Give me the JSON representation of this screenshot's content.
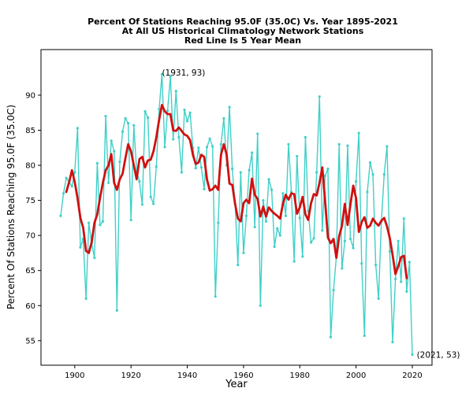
{
  "chart_data": {
    "type": "line",
    "title_lines": [
      "Percent Of Stations Reaching 95.0F (35.0C) Vs. Year 1895-2021",
      "At All US Historical Climatology Network Stations",
      "Red Line Is 5 Year Mean"
    ],
    "xlabel": "Year",
    "ylabel": "Percent Of Stations Reaching 95.0F (35.0C)",
    "xlim": [
      1888,
      2027
    ],
    "ylim": [
      51.5,
      96.5
    ],
    "xticks": [
      1900,
      1920,
      1940,
      1960,
      1980,
      2000,
      2020
    ],
    "yticks": [
      55,
      60,
      65,
      70,
      75,
      80,
      85,
      90
    ],
    "grid": false,
    "colors": {
      "series": "#40d0c8",
      "mean": "#d01010"
    },
    "series": [
      {
        "name": "Percent of stations",
        "x_start": 1895,
        "values": [
          72.8,
          76.0,
          78.2,
          77.6,
          77.0,
          79.0,
          85.3,
          68.3,
          69.5,
          61.0,
          71.8,
          68.9,
          66.8,
          80.3,
          71.5,
          72.0,
          87.0,
          77.5,
          83.5,
          82.0,
          59.3,
          80.5,
          84.8,
          86.7,
          86.0,
          72.2,
          85.7,
          79.3,
          77.7,
          74.4,
          87.7,
          86.8,
          75.5,
          74.5,
          79.8,
          88.0,
          93.0,
          82.6,
          87.8,
          92.7,
          83.7,
          90.6,
          84.0,
          79.0,
          87.9,
          86.3,
          87.5,
          82.5,
          79.6,
          82.5,
          79.7,
          76.6,
          82.6,
          83.8,
          82.7,
          61.3,
          71.8,
          83.0,
          86.7,
          80.0,
          88.3,
          79.5,
          74.5,
          65.8,
          79.0,
          67.5,
          72.8,
          79.3,
          81.8,
          71.2,
          84.5,
          60.0,
          75.0,
          72.0,
          78.0,
          76.5,
          68.4,
          71.0,
          70.0,
          76.0,
          72.8,
          83.0,
          76.2,
          66.3,
          81.3,
          72.5,
          67.0,
          84.0,
          73.5,
          69.0,
          69.6,
          79.0,
          89.8,
          70.7,
          78.5,
          79.5,
          55.5,
          62.2,
          67.0,
          83.0,
          65.3,
          69.2,
          82.8,
          69.5,
          68.2,
          77.7,
          84.6,
          66.0,
          55.7,
          76.2,
          80.4,
          78.7,
          65.8,
          61.0,
          72.0,
          78.7,
          82.7,
          67.7,
          54.8,
          63.8,
          69.2,
          63.4,
          72.4,
          62.0,
          66.2,
          53.0
        ],
        "point_labels": [
          {
            "year": 1931,
            "value": 93,
            "text": "(1931, 93)"
          },
          {
            "year": 2021,
            "value": 53,
            "text": "(2021, 53)"
          }
        ]
      },
      {
        "name": "5 Year Mean",
        "x_start": 1897,
        "values": [
          76.2,
          77.6,
          79.3,
          77.6,
          75.3,
          72.5,
          71.1,
          67.8,
          67.5,
          69.0,
          71.8,
          73.0,
          75.4,
          77.5,
          79.3,
          80.0,
          81.6,
          77.5,
          76.5,
          78.0,
          78.8,
          81.0,
          83.0,
          82.0,
          80.0,
          78.0,
          80.9,
          81.2,
          79.7,
          80.7,
          80.8,
          82.0,
          84.0,
          86.5,
          88.6,
          87.7,
          87.3,
          87.3,
          85.0,
          84.9,
          85.4,
          84.9,
          84.4,
          84.2,
          83.6,
          81.5,
          80.2,
          80.4,
          81.5,
          81.2,
          78.0,
          76.4,
          76.6,
          77.1,
          76.5,
          81.5,
          83.0,
          81.5,
          77.4,
          77.2,
          74.5,
          72.4,
          72.0,
          74.6,
          75.1,
          74.6,
          78.1,
          75.8,
          75.2,
          72.7,
          74.1,
          72.7,
          74.0,
          73.5,
          73.1,
          72.8,
          72.4,
          74.5,
          75.8,
          75.1,
          76.0,
          75.9,
          73.1,
          74.0,
          75.5,
          73.0,
          72.2,
          74.6,
          75.9,
          75.7,
          77.5,
          79.7,
          74.9,
          69.7,
          68.9,
          69.5,
          66.8,
          69.9,
          71.4,
          74.5,
          71.5,
          74.4,
          77.1,
          75.3,
          70.5,
          71.9,
          72.6,
          71.1,
          71.4,
          72.4,
          71.8,
          71.4,
          72.1,
          72.5,
          71.3,
          69.6,
          67.2,
          64.5,
          65.6,
          66.9,
          67.1,
          63.9
        ]
      }
    ]
  }
}
